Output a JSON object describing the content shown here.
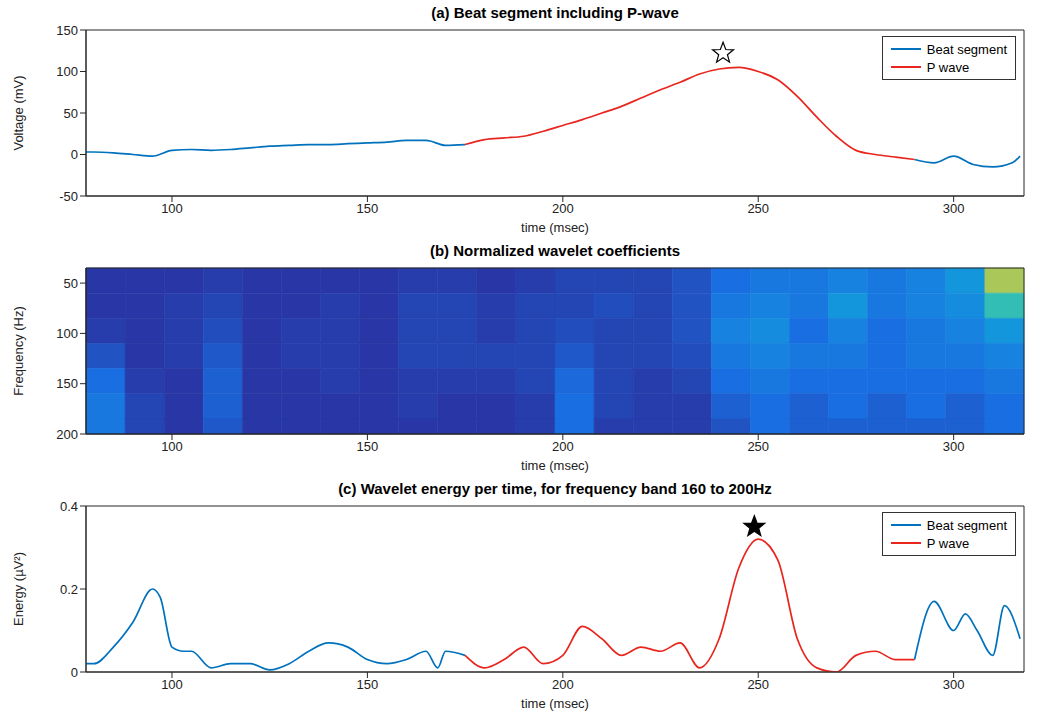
{
  "chart_data": [
    {
      "type": "line",
      "title": "(a) Beat segment including P-wave",
      "x_label": "time (msec)",
      "y_label": "Voltage (mV)",
      "x": [
        78,
        80,
        85,
        90,
        95,
        100,
        105,
        110,
        115,
        120,
        125,
        130,
        135,
        140,
        145,
        150,
        155,
        160,
        165,
        170,
        175,
        180,
        185,
        190,
        195,
        200,
        205,
        210,
        215,
        220,
        225,
        230,
        235,
        240,
        245,
        250,
        255,
        260,
        265,
        270,
        275,
        280,
        285,
        290,
        295,
        300,
        305,
        310,
        315,
        317
      ],
      "series": [
        {
          "name": "Beat segment",
          "color": "#0072bd",
          "values": [
            3,
            3,
            2,
            0,
            -2,
            5,
            6,
            5,
            6,
            8,
            10,
            11,
            12,
            12,
            13,
            14,
            15,
            17,
            17,
            11,
            12,
            null,
            null,
            null,
            null,
            null,
            null,
            null,
            null,
            null,
            null,
            null,
            null,
            null,
            null,
            null,
            null,
            null,
            null,
            null,
            null,
            null,
            null,
            -6,
            -10,
            -2,
            -12,
            -15,
            -10,
            -2
          ]
        },
        {
          "name": "P wave",
          "color": "#e8261e",
          "values": [
            null,
            null,
            null,
            null,
            null,
            null,
            null,
            null,
            null,
            null,
            null,
            null,
            null,
            null,
            null,
            null,
            null,
            null,
            null,
            null,
            12,
            18,
            20,
            22,
            28,
            35,
            42,
            50,
            58,
            68,
            78,
            87,
            97,
            103,
            105,
            100,
            90,
            70,
            45,
            22,
            5,
            0,
            -3,
            -6,
            null,
            null,
            null,
            null,
            null,
            null
          ]
        }
      ],
      "xlim": [
        78,
        318
      ],
      "ylim": [
        -50,
        150
      ],
      "xticks": [
        100,
        150,
        200,
        250,
        300
      ],
      "yticks": [
        -50,
        0,
        50,
        100,
        150
      ],
      "grid": false,
      "legend": "upper right",
      "annotations": [
        {
          "x": 241,
          "y": 122,
          "marker": "open_star"
        }
      ]
    },
    {
      "type": "heatmap",
      "title": "(b) Normalized wavelet coefficients",
      "x_label": "time (msec)",
      "y_label": "Frequency (Hz)",
      "x_bins": [
        78,
        88,
        98,
        108,
        118,
        128,
        138,
        148,
        158,
        168,
        178,
        188,
        198,
        208,
        218,
        228,
        238,
        248,
        258,
        268,
        278,
        288,
        298,
        308,
        318
      ],
      "y_bins": [
        35,
        60,
        85,
        110,
        135,
        160,
        185,
        200
      ],
      "cells": [
        [
          0.1,
          0.1,
          0.1,
          0.12,
          0.1,
          0.1,
          0.1,
          0.1,
          0.12,
          0.12,
          0.1,
          0.12,
          0.15,
          0.15,
          0.15,
          0.2,
          0.3,
          0.35,
          0.35,
          0.4,
          0.35,
          0.4,
          0.5,
          0.85
        ],
        [
          0.1,
          0.1,
          0.12,
          0.15,
          0.1,
          0.1,
          0.12,
          0.1,
          0.15,
          0.15,
          0.12,
          0.15,
          0.15,
          0.18,
          0.15,
          0.2,
          0.35,
          0.4,
          0.35,
          0.5,
          0.35,
          0.4,
          0.45,
          0.7
        ],
        [
          0.12,
          0.1,
          0.12,
          0.18,
          0.1,
          0.12,
          0.12,
          0.1,
          0.15,
          0.15,
          0.12,
          0.15,
          0.18,
          0.15,
          0.15,
          0.2,
          0.4,
          0.45,
          0.3,
          0.4,
          0.3,
          0.35,
          0.4,
          0.5
        ],
        [
          0.2,
          0.1,
          0.12,
          0.22,
          0.1,
          0.12,
          0.12,
          0.1,
          0.15,
          0.15,
          0.15,
          0.15,
          0.22,
          0.15,
          0.15,
          0.18,
          0.35,
          0.4,
          0.35,
          0.35,
          0.3,
          0.35,
          0.35,
          0.4
        ],
        [
          0.3,
          0.12,
          0.1,
          0.25,
          0.1,
          0.1,
          0.12,
          0.1,
          0.12,
          0.12,
          0.12,
          0.15,
          0.28,
          0.15,
          0.12,
          0.15,
          0.3,
          0.35,
          0.3,
          0.3,
          0.3,
          0.3,
          0.3,
          0.35
        ],
        [
          0.35,
          0.15,
          0.1,
          0.25,
          0.1,
          0.1,
          0.1,
          0.1,
          0.12,
          0.1,
          0.1,
          0.12,
          0.3,
          0.15,
          0.12,
          0.12,
          0.25,
          0.3,
          0.25,
          0.3,
          0.25,
          0.3,
          0.25,
          0.3
        ],
        [
          0.35,
          0.15,
          0.1,
          0.22,
          0.1,
          0.1,
          0.1,
          0.1,
          0.1,
          0.1,
          0.1,
          0.12,
          0.3,
          0.12,
          0.12,
          0.12,
          0.2,
          0.3,
          0.25,
          0.25,
          0.25,
          0.25,
          0.25,
          0.3
        ]
      ],
      "xlim": [
        78,
        318
      ],
      "ylim": [
        35,
        200
      ],
      "xticks": [
        100,
        150,
        200,
        250,
        300
      ],
      "yticks": [
        50,
        100,
        150,
        200
      ]
    },
    {
      "type": "line",
      "title": "(c) Wavelet energy per time, for frequency band 160 to 200Hz",
      "x_label": "time (msec)",
      "y_label": "Energy (µV²)",
      "x": [
        78,
        80,
        85,
        90,
        95,
        97,
        100,
        103,
        105,
        110,
        115,
        120,
        125,
        130,
        135,
        140,
        145,
        150,
        155,
        160,
        165,
        168,
        170,
        175,
        180,
        185,
        190,
        195,
        200,
        205,
        210,
        215,
        220,
        225,
        230,
        235,
        240,
        245,
        250,
        255,
        260,
        265,
        270,
        275,
        280,
        285,
        290,
        295,
        300,
        303,
        306,
        310,
        313,
        317
      ],
      "series": [
        {
          "name": "Beat segment",
          "color": "#0072bd",
          "values": [
            0.02,
            0.02,
            0.06,
            0.12,
            0.2,
            0.18,
            0.06,
            0.05,
            0.05,
            0.01,
            0.02,
            0.02,
            0.005,
            0.02,
            0.05,
            0.07,
            0.06,
            0.03,
            0.02,
            0.03,
            0.05,
            0.01,
            0.05,
            0.04,
            null,
            null,
            null,
            null,
            null,
            null,
            null,
            null,
            null,
            null,
            null,
            null,
            null,
            null,
            null,
            null,
            null,
            null,
            null,
            null,
            null,
            null,
            0.03,
            0.17,
            0.1,
            0.14,
            0.1,
            0.04,
            0.16,
            0.08
          ]
        },
        {
          "name": "P wave",
          "color": "#e8261e",
          "values": [
            null,
            null,
            null,
            null,
            null,
            null,
            null,
            null,
            null,
            null,
            null,
            null,
            null,
            null,
            null,
            null,
            null,
            null,
            null,
            null,
            null,
            null,
            null,
            0.04,
            0.01,
            0.03,
            0.06,
            0.02,
            0.04,
            0.11,
            0.08,
            0.04,
            0.06,
            0.05,
            0.07,
            0.01,
            0.08,
            0.25,
            0.32,
            0.27,
            0.08,
            0.01,
            0.0,
            0.04,
            0.05,
            0.03,
            0.03,
            null,
            null,
            null,
            null,
            null,
            null,
            null
          ]
        }
      ],
      "xlim": [
        78,
        318
      ],
      "ylim": [
        0,
        0.4
      ],
      "xticks": [
        100,
        150,
        200,
        250,
        300
      ],
      "yticks": [
        0,
        0.2,
        0.4
      ],
      "grid": false,
      "legend": "upper right",
      "annotations": [
        {
          "x": 249,
          "y": 0.35,
          "marker": "filled_star"
        }
      ]
    }
  ]
}
